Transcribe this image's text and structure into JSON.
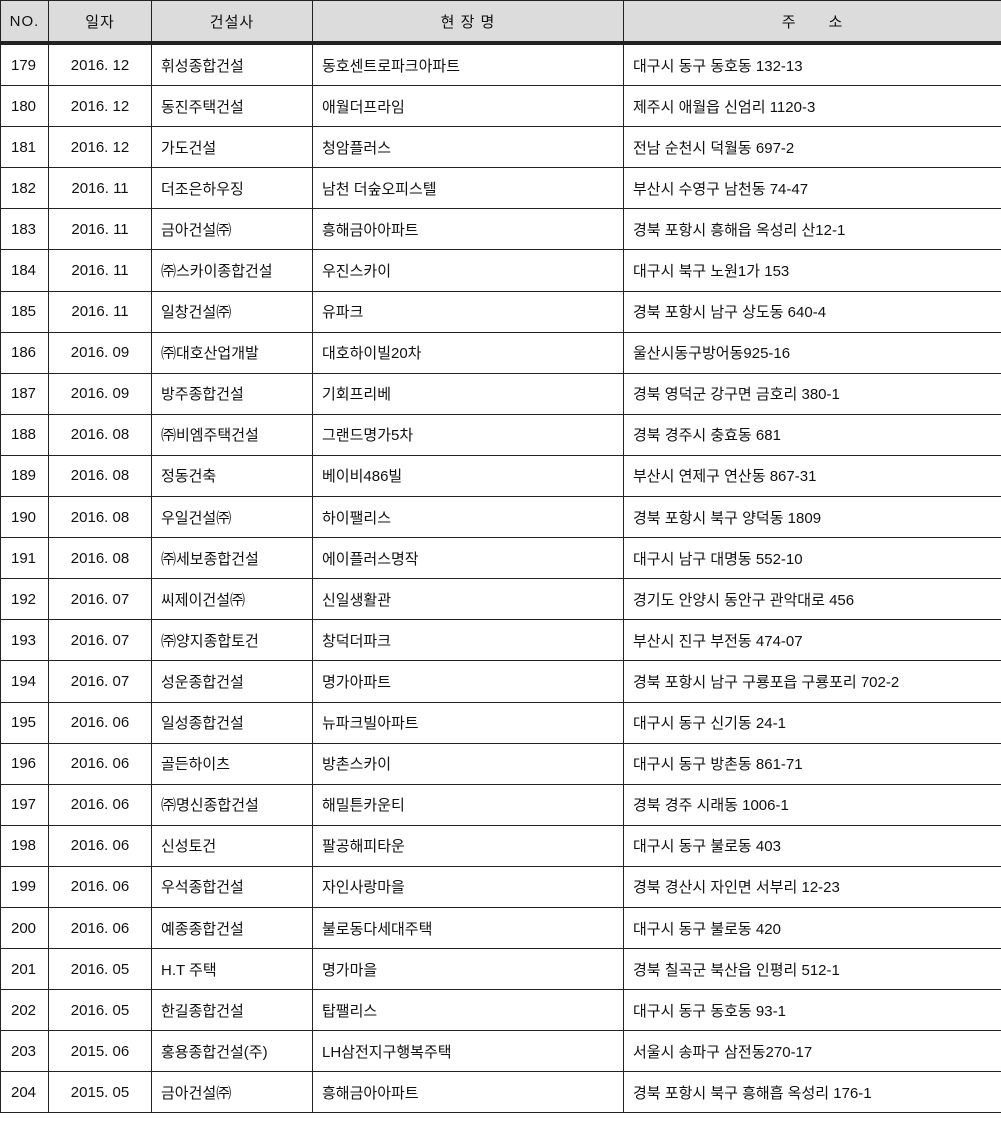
{
  "headers": [
    "NO.",
    "일자",
    "건설사",
    "현 장 명",
    "주　　소"
  ],
  "rows": [
    {
      "no": "179",
      "date": "2016. 12",
      "company": "휘성종합건설",
      "site": "동호센트로파크아파트",
      "address": "대구시 동구 동호동 132-13"
    },
    {
      "no": "180",
      "date": "2016. 12",
      "company": "동진주택건설",
      "site": "애월더프라임",
      "address": "제주시 애월읍 신엄리 1120-3"
    },
    {
      "no": "181",
      "date": "2016. 12",
      "company": "가도건설",
      "site": "청암플러스",
      "address": "전남 순천시 덕월동 697-2"
    },
    {
      "no": "182",
      "date": "2016. 11",
      "company": "더조은하우징",
      "site": "남천 더숲오피스텔",
      "address": "부산시 수영구 남천동 74-47"
    },
    {
      "no": "183",
      "date": "2016. 11",
      "company": "금아건설㈜",
      "site": "흥해금아아파트",
      "address": "경북 포항시 흥해읍 옥성리 산12-1"
    },
    {
      "no": "184",
      "date": "2016. 11",
      "company": "㈜스카이종합건설",
      "site": "우진스카이",
      "address": "대구시 북구 노원1가 153"
    },
    {
      "no": "185",
      "date": "2016. 11",
      "company": "일창건설㈜",
      "site": "유파크",
      "address": "경북 포항시 남구 상도동 640-4"
    },
    {
      "no": "186",
      "date": "2016. 09",
      "company": "㈜대호산업개발",
      "site": "대호하이빌20차",
      "address": "울산시동구방어동925-16"
    },
    {
      "no": "187",
      "date": "2016. 09",
      "company": "방주종합건설",
      "site": "기회프리베",
      "address": "경북 영덕군 강구면 금호리 380-1"
    },
    {
      "no": "188",
      "date": "2016. 08",
      "company": "㈜비엠주택건설",
      "site": "그랜드명가5차",
      "address": "경북 경주시 충효동 681"
    },
    {
      "no": "189",
      "date": "2016. 08",
      "company": "정동건축",
      "site": "베이비486빌",
      "address": "부산시 연제구 연산동 867-31"
    },
    {
      "no": "190",
      "date": "2016. 08",
      "company": "우일건설㈜",
      "site": "하이팰리스",
      "address": "경북 포항시 북구 양덕동 1809"
    },
    {
      "no": "191",
      "date": "2016. 08",
      "company": "㈜세보종합건설",
      "site": "에이플러스명작",
      "address": "대구시 남구 대명동 552-10"
    },
    {
      "no": "192",
      "date": "2016. 07",
      "company": "씨제이건설㈜",
      "site": "신일생활관",
      "address": "경기도 안양시 동안구 관악대로 456"
    },
    {
      "no": "193",
      "date": "2016. 07",
      "company": "㈜양지종합토건",
      "site": "창덕더파크",
      "address": "부산시 진구 부전동 474-07"
    },
    {
      "no": "194",
      "date": "2016. 07",
      "company": "성운종합건설",
      "site": "명가아파트",
      "address": "경북 포항시 남구 구룡포읍 구룡포리 702-2"
    },
    {
      "no": "195",
      "date": "2016. 06",
      "company": "일성종합건설",
      "site": "뉴파크빌아파트",
      "address": "대구시 동구 신기동 24-1"
    },
    {
      "no": "196",
      "date": "2016. 06",
      "company": "골든하이츠",
      "site": "방촌스카이",
      "address": "대구시 동구 방촌동 861-71"
    },
    {
      "no": "197",
      "date": "2016. 06",
      "company": "㈜명신종합건설",
      "site": "해밀튼카운티",
      "address": "경북 경주 시래동 1006-1"
    },
    {
      "no": "198",
      "date": "2016. 06",
      "company": "신성토건",
      "site": "팔공해피타운",
      "address": "대구시 동구 불로동 403"
    },
    {
      "no": "199",
      "date": "2016. 06",
      "company": "우석종합건설",
      "site": "자인사랑마을",
      "address": "경북 경산시 자인면 서부리 12-23"
    },
    {
      "no": "200",
      "date": "2016. 06",
      "company": "예종종합건설",
      "site": "불로동다세대주택",
      "address": "대구시 동구 불로동 420"
    },
    {
      "no": "201",
      "date": "2016. 05",
      "company": "H.T 주택",
      "site": "명가마을",
      "address": "경북 칠곡군 북산읍 인평리 512-1"
    },
    {
      "no": "202",
      "date": "2016. 05",
      "company": "한길종합건설",
      "site": "탑팰리스",
      "address": "대구시 동구 동호동 93-1"
    },
    {
      "no": "203",
      "date": "2015. 06",
      "company": "홍용종합건설(주)",
      "site": "LH삼전지구행복주택",
      "address": "서울시 송파구 삼전동270-17"
    },
    {
      "no": "204",
      "date": "2015. 05",
      "company": "금아건설㈜",
      "site": "흥해금아아파트",
      "address": "경북 포항시 북구 흥해흡 옥성리 176-1"
    }
  ]
}
